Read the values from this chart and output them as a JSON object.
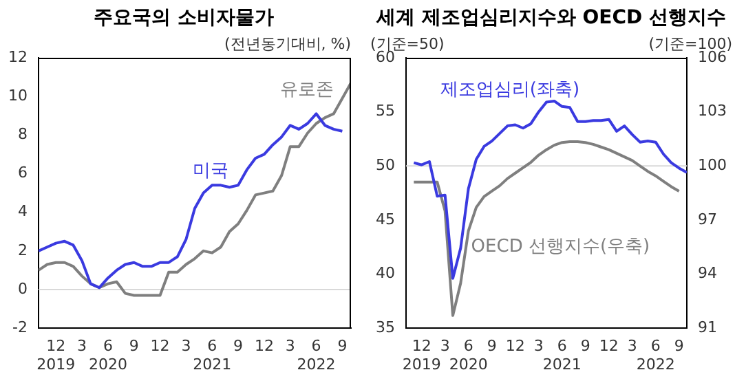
{
  "chart_data": [
    {
      "type": "line",
      "title": "주요국의 소비자물가",
      "ylabel": "(전년동기대비, %)",
      "legend": false,
      "grid": false,
      "marker": "none",
      "line_style": "solid",
      "x": [
        "2019-10",
        "2019-11",
        "2019-12",
        "2020-01",
        "2020-02",
        "2020-03",
        "2020-04",
        "2020-05",
        "2020-06",
        "2020-07",
        "2020-08",
        "2020-09",
        "2020-10",
        "2020-11",
        "2020-12",
        "2021-01",
        "2021-02",
        "2021-03",
        "2021-04",
        "2021-05",
        "2021-06",
        "2021-07",
        "2021-08",
        "2021-09",
        "2021-10",
        "2021-11",
        "2021-12",
        "2022-01",
        "2022-02",
        "2022-03",
        "2022-04",
        "2022-05",
        "2022-06",
        "2022-07",
        "2022-08",
        "2022-09",
        "2022-10"
      ],
      "xlim": [
        "2019-10",
        "2022-10"
      ],
      "xticks": [
        {
          "value": "2019-12",
          "label": "12\n2019"
        },
        {
          "value": "2020-03",
          "label": "3"
        },
        {
          "value": "2020-06",
          "label": "6\n2020"
        },
        {
          "value": "2020-09",
          "label": "9"
        },
        {
          "value": "2020-12",
          "label": "12"
        },
        {
          "value": "2021-03",
          "label": "3"
        },
        {
          "value": "2021-06",
          "label": "6\n2021"
        },
        {
          "value": "2021-09",
          "label": "9"
        },
        {
          "value": "2021-12",
          "label": "12"
        },
        {
          "value": "2022-03",
          "label": "3"
        },
        {
          "value": "2022-06",
          "label": "6\n2022"
        },
        {
          "value": "2022-09",
          "label": "9"
        }
      ],
      "ylim": [
        -2,
        12
      ],
      "yticks": [
        -2,
        0,
        2,
        4,
        6,
        8,
        10,
        12
      ],
      "ref_lines": [
        {
          "axis": "y",
          "value": 0,
          "color": "#d9d9d9"
        }
      ],
      "series": [
        {
          "name": "미국",
          "color": "#3a3ae0",
          "values": [
            2.0,
            2.2,
            2.4,
            2.5,
            2.3,
            1.5,
            0.3,
            0.1,
            0.6,
            1.0,
            1.3,
            1.4,
            1.2,
            1.2,
            1.4,
            1.4,
            1.7,
            2.6,
            4.2,
            5.0,
            5.4,
            5.4,
            5.3,
            5.4,
            6.2,
            6.8,
            7.0,
            7.5,
            7.9,
            8.5,
            8.3,
            8.6,
            9.1,
            8.5,
            8.3,
            8.2,
            null
          ]
        },
        {
          "name": "유로존",
          "color": "#7f7f7f",
          "values": [
            1.0,
            1.3,
            1.4,
            1.4,
            1.2,
            0.7,
            0.3,
            0.1,
            0.3,
            0.4,
            -0.2,
            -0.3,
            -0.3,
            -0.3,
            -0.3,
            0.9,
            0.9,
            1.3,
            1.6,
            2.0,
            1.9,
            2.2,
            3.0,
            3.4,
            4.1,
            4.9,
            5.0,
            5.1,
            5.9,
            7.4,
            7.4,
            8.1,
            8.6,
            8.9,
            9.1,
            9.9,
            10.7
          ]
        }
      ]
    },
    {
      "type": "line",
      "title": "세계 제조업심리지수와 OECD 선행지수",
      "ylabel": "(기준=50)",
      "y2label": "(기준=100)",
      "legend": false,
      "grid": false,
      "marker": "none",
      "line_style": "solid",
      "x": [
        "2019-11",
        "2019-12",
        "2020-01",
        "2020-02",
        "2020-03",
        "2020-04",
        "2020-05",
        "2020-06",
        "2020-07",
        "2020-08",
        "2020-09",
        "2020-10",
        "2020-11",
        "2020-12",
        "2021-01",
        "2021-02",
        "2021-03",
        "2021-04",
        "2021-05",
        "2021-06",
        "2021-07",
        "2021-08",
        "2021-09",
        "2021-10",
        "2021-11",
        "2021-12",
        "2022-01",
        "2022-02",
        "2022-03",
        "2022-04",
        "2022-05",
        "2022-06",
        "2022-07",
        "2022-08",
        "2022-09",
        "2022-10"
      ],
      "xlim": [
        "2019-10",
        "2022-10"
      ],
      "xticks": [
        {
          "value": "2019-12",
          "label": "12\n2019"
        },
        {
          "value": "2020-03",
          "label": "3"
        },
        {
          "value": "2020-06",
          "label": "6\n2020"
        },
        {
          "value": "2020-09",
          "label": "9"
        },
        {
          "value": "2020-12",
          "label": "12"
        },
        {
          "value": "2021-03",
          "label": "3"
        },
        {
          "value": "2021-06",
          "label": "6\n2021"
        },
        {
          "value": "2021-09",
          "label": "9"
        },
        {
          "value": "2021-12",
          "label": "12"
        },
        {
          "value": "2022-03",
          "label": "3"
        },
        {
          "value": "2022-06",
          "label": "6\n2022"
        },
        {
          "value": "2022-09",
          "label": "9"
        }
      ],
      "ylim": [
        35,
        60
      ],
      "yticks": [
        35,
        40,
        45,
        50,
        55,
        60
      ],
      "y2lim": [
        91,
        106
      ],
      "y2ticks": [
        91,
        94,
        97,
        100,
        103,
        106
      ],
      "ref_lines": [
        {
          "axis": "y",
          "value": 50,
          "color": "#d9d9d9"
        }
      ],
      "series": [
        {
          "name": "제조업심리(좌축)",
          "color": "#3a3ae0",
          "values": [
            50.3,
            50.1,
            50.4,
            47.2,
            47.3,
            39.6,
            42.4,
            47.9,
            50.6,
            51.8,
            52.3,
            53.0,
            53.7,
            53.8,
            53.5,
            53.9,
            55.0,
            55.9,
            56.0,
            55.5,
            55.4,
            54.1,
            54.1,
            54.2,
            54.2,
            54.3,
            53.2,
            53.7,
            52.9,
            52.2,
            52.3,
            52.2,
            51.1,
            50.3,
            49.8,
            49.4
          ]
        },
        {
          "name": "OECD 선행지수(우축)",
          "color": "#7f7f7f",
          "axis": "y2",
          "values": [
            99.1,
            99.1,
            99.1,
            99.1,
            97.5,
            91.7,
            93.5,
            96.4,
            97.7,
            98.3,
            98.6,
            98.9,
            99.3,
            99.6,
            99.9,
            100.2,
            100.6,
            100.9,
            101.15,
            101.3,
            101.35,
            101.35,
            101.3,
            101.2,
            101.05,
            100.9,
            100.7,
            100.5,
            100.3,
            100.0,
            99.7,
            99.45,
            99.15,
            98.85,
            98.6,
            null
          ]
        }
      ]
    }
  ]
}
